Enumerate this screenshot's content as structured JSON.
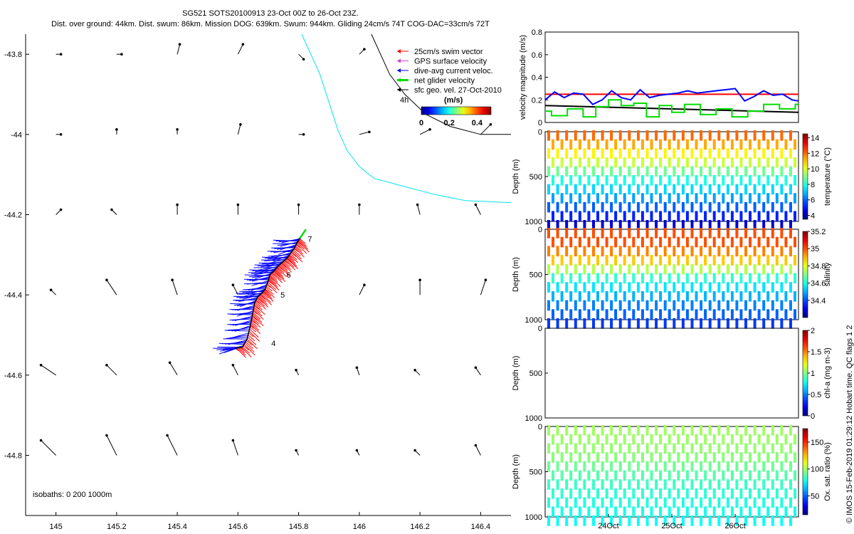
{
  "header": {
    "line1": "SG521 SOTS20100913 23-Oct 00Z to 26-Oct 23Z.",
    "line2": "Dist. over ground: 44km. Dist. swum: 86km. Mission DOG: 639km. Swum: 944km. Gliding 24cm/s 74T COG-DAC=33cm/s 72T"
  },
  "credit": "© IMOS 15-Feb-2019 01:29:12 Hobart time. QC flags 1  2",
  "colors": {
    "swim": "#ff0000",
    "gps": "#cc44cc",
    "dac": "#0000ff",
    "net": "#00dd00",
    "geo": "#000000",
    "isobath": "#00e5ee",
    "coast": "#000000",
    "redline": "#ff0000"
  },
  "chart_data": [
    {
      "id": "map",
      "type": "scatter",
      "title": "",
      "xlabel": "",
      "ylabel": "",
      "xlim": [
        144.9,
        146.5
      ],
      "ylim": [
        -44.95,
        -43.75
      ],
      "xticks": [
        145,
        145.2,
        145.4,
        145.6,
        145.8,
        146,
        146.2,
        146.4
      ],
      "xtick_labels": [
        "145",
        "145.2",
        "145.4",
        "145.6",
        "145.8",
        "146",
        "146.2",
        "146.4"
      ],
      "yticks": [
        -43.8,
        -44,
        -44.2,
        -44.4,
        -44.6,
        -44.8
      ],
      "ytick_labels": [
        "-43.8",
        "-44",
        "-44.2",
        "-44.4",
        "-44.6",
        "-44.8"
      ],
      "legend": {
        "position": "top-right",
        "items": [
          {
            "label": "25cm/s swim vector",
            "color": "#ff0000"
          },
          {
            "label": "GPS surface velocity",
            "color": "#cc44cc"
          },
          {
            "label": "dive-avg current veloc.",
            "color": "#0000ff"
          },
          {
            "label": "net glider velocity",
            "color": "#00dd00"
          },
          {
            "label": "sfc geo. vel. 27-Oct-2010",
            "color": "#000000"
          }
        ],
        "scale_label": "4h",
        "colorbar_title": "(m/s)",
        "colorbar_ticks": [
          "0",
          "0.2",
          "0.4"
        ],
        "colorbar_range": [
          0,
          0.5
        ]
      },
      "isobath_note": "isobaths: 0   200   1000m",
      "track_day_labels": [
        {
          "label": "7",
          "lon": 145.83,
          "lat": -44.26
        },
        {
          "label": "6",
          "lon": 145.76,
          "lat": -44.35
        },
        {
          "label": "5",
          "lon": 145.74,
          "lat": -44.4
        },
        {
          "label": "4",
          "lon": 145.71,
          "lat": -44.52
        }
      ],
      "track": [
        [
          145.59,
          -44.533
        ],
        [
          145.615,
          -44.53
        ],
        [
          145.63,
          -44.51
        ],
        [
          145.64,
          -44.48
        ],
        [
          145.645,
          -44.46
        ],
        [
          145.65,
          -44.44
        ],
        [
          145.655,
          -44.42
        ],
        [
          145.665,
          -44.405
        ],
        [
          145.68,
          -44.395
        ],
        [
          145.69,
          -44.385
        ],
        [
          145.7,
          -44.365
        ],
        [
          145.705,
          -44.35
        ],
        [
          145.72,
          -44.34
        ],
        [
          145.73,
          -44.33
        ],
        [
          145.745,
          -44.32
        ],
        [
          145.76,
          -44.31
        ],
        [
          145.77,
          -44.3
        ],
        [
          145.785,
          -44.285
        ],
        [
          145.795,
          -44.27
        ],
        [
          145.805,
          -44.258
        ]
      ],
      "isobath_0": [
        [
          145.81,
          -43.75
        ],
        [
          145.84,
          -43.8
        ],
        [
          145.87,
          -43.85
        ],
        [
          145.9,
          -43.92
        ],
        [
          145.93,
          -43.99
        ],
        [
          145.96,
          -44.04
        ],
        [
          146.0,
          -44.08
        ],
        [
          146.05,
          -44.11
        ],
        [
          146.1,
          -44.12
        ],
        [
          146.15,
          -44.13
        ],
        [
          146.25,
          -44.15
        ],
        [
          146.35,
          -44.165
        ],
        [
          146.5,
          -44.17
        ]
      ],
      "coast": [
        [
          146.04,
          -43.75
        ],
        [
          146.07,
          -43.8
        ],
        [
          146.1,
          -43.85
        ],
        [
          146.15,
          -43.9
        ],
        [
          146.22,
          -43.95
        ],
        [
          146.3,
          -43.98
        ],
        [
          146.4,
          -44.0
        ],
        [
          146.5,
          -44.0
        ]
      ],
      "geo_vectors": [
        {
          "lon": 145.0,
          "lat": -43.8,
          "u": 0.01,
          "v": 0.0
        },
        {
          "lon": 145.2,
          "lat": -43.8,
          "u": 0.01,
          "v": 0.0
        },
        {
          "lon": 145.4,
          "lat": -43.8,
          "u": 0.005,
          "v": 0.02
        },
        {
          "lon": 145.6,
          "lat": -43.8,
          "u": 0.01,
          "v": 0.02
        },
        {
          "lon": 145.8,
          "lat": -43.8,
          "u": 0.01,
          "v": -0.01
        },
        {
          "lon": 146.0,
          "lat": -43.8,
          "u": 0.01,
          "v": 0.01
        },
        {
          "lon": 145.0,
          "lat": -44.0,
          "u": 0.01,
          "v": 0.0
        },
        {
          "lon": 145.2,
          "lat": -44.0,
          "u": 0.0,
          "v": 0.01
        },
        {
          "lon": 145.4,
          "lat": -44.0,
          "u": 0.0,
          "v": 0.01
        },
        {
          "lon": 145.6,
          "lat": -44.0,
          "u": 0.005,
          "v": 0.02
        },
        {
          "lon": 145.8,
          "lat": -44.0,
          "u": 0.01,
          "v": 0.0
        },
        {
          "lon": 146.0,
          "lat": -44.0,
          "u": 0.02,
          "v": 0.005
        },
        {
          "lon": 146.2,
          "lat": -44.0,
          "u": 0.02,
          "v": 0.01
        },
        {
          "lon": 146.4,
          "lat": -44.0,
          "u": 0.02,
          "v": 0.02
        },
        {
          "lon": 145.0,
          "lat": -44.2,
          "u": 0.01,
          "v": 0.01
        },
        {
          "lon": 145.2,
          "lat": -44.2,
          "u": -0.01,
          "v": 0.01
        },
        {
          "lon": 145.4,
          "lat": -44.2,
          "u": 0.0,
          "v": 0.02
        },
        {
          "lon": 145.6,
          "lat": -44.2,
          "u": 0.0,
          "v": 0.02
        },
        {
          "lon": 145.8,
          "lat": -44.2,
          "u": 0.0,
          "v": 0.02
        },
        {
          "lon": 146.0,
          "lat": -44.2,
          "u": 0.0,
          "v": 0.02
        },
        {
          "lon": 146.2,
          "lat": -44.2,
          "u": -0.005,
          "v": 0.02
        },
        {
          "lon": 146.4,
          "lat": -44.2,
          "u": -0.01,
          "v": 0.02
        },
        {
          "lon": 145.0,
          "lat": -44.4,
          "u": -0.01,
          "v": 0.01
        },
        {
          "lon": 145.2,
          "lat": -44.4,
          "u": -0.02,
          "v": 0.03
        },
        {
          "lon": 145.4,
          "lat": -44.4,
          "u": -0.01,
          "v": 0.03
        },
        {
          "lon": 145.6,
          "lat": -44.4,
          "u": -0.01,
          "v": 0.02
        },
        {
          "lon": 146.0,
          "lat": -44.4,
          "u": 0.01,
          "v": 0.02
        },
        {
          "lon": 146.2,
          "lat": -44.4,
          "u": 0.0,
          "v": 0.03
        },
        {
          "lon": 146.4,
          "lat": -44.4,
          "u": 0.01,
          "v": 0.03
        },
        {
          "lon": 145.0,
          "lat": -44.6,
          "u": -0.03,
          "v": 0.02
        },
        {
          "lon": 145.2,
          "lat": -44.6,
          "u": -0.02,
          "v": 0.02
        },
        {
          "lon": 145.4,
          "lat": -44.6,
          "u": -0.015,
          "v": 0.025
        },
        {
          "lon": 145.6,
          "lat": -44.6,
          "u": -0.01,
          "v": 0.02
        },
        {
          "lon": 145.8,
          "lat": -44.6,
          "u": -0.005,
          "v": 0.01
        },
        {
          "lon": 146.0,
          "lat": -44.6,
          "u": -0.005,
          "v": 0.015
        },
        {
          "lon": 146.2,
          "lat": -44.6,
          "u": -0.01,
          "v": 0.01
        },
        {
          "lon": 146.4,
          "lat": -44.6,
          "u": -0.01,
          "v": 0.015
        },
        {
          "lon": 145.0,
          "lat": -44.8,
          "u": -0.03,
          "v": 0.03
        },
        {
          "lon": 145.2,
          "lat": -44.8,
          "u": -0.02,
          "v": 0.04
        },
        {
          "lon": 145.4,
          "lat": -44.8,
          "u": -0.02,
          "v": 0.04
        },
        {
          "lon": 145.6,
          "lat": -44.8,
          "u": -0.01,
          "v": 0.03
        },
        {
          "lon": 145.8,
          "lat": -44.8,
          "u": -0.005,
          "v": 0.01
        },
        {
          "lon": 146.0,
          "lat": -44.8,
          "u": -0.005,
          "v": 0.01
        },
        {
          "lon": 146.2,
          "lat": -44.8,
          "u": -0.01,
          "v": 0.01
        },
        {
          "lon": 146.4,
          "lat": -44.8,
          "u": -0.01,
          "v": 0.02
        }
      ]
    },
    {
      "id": "velocity",
      "type": "line",
      "ylabel": "velocity magnitude (m/s)",
      "ylim": [
        0,
        0.8
      ],
      "yticks": [
        0,
        0.2,
        0.4,
        0.6,
        0.8
      ],
      "ytick_labels": [
        "0",
        "0.2",
        "0.4",
        "0.6",
        "0.8"
      ],
      "xlim": [
        23.0,
        27.0
      ],
      "reference_line": 0.25,
      "series": [
        {
          "name": "dive-avg current veloc.",
          "color": "#0000ff",
          "x": [
            23.0,
            23.15,
            23.3,
            23.45,
            23.6,
            23.75,
            23.9,
            24.05,
            24.2,
            24.35,
            24.5,
            24.65,
            24.8,
            24.95,
            25.1,
            25.25,
            25.4,
            25.55,
            25.7,
            25.85,
            26.0,
            26.15,
            26.3,
            26.45,
            26.6,
            26.75,
            26.9,
            27.0
          ],
          "values": [
            0.2,
            0.27,
            0.22,
            0.26,
            0.25,
            0.16,
            0.2,
            0.28,
            0.22,
            0.2,
            0.29,
            0.22,
            0.24,
            0.25,
            0.26,
            0.28,
            0.26,
            0.27,
            0.28,
            0.29,
            0.3,
            0.19,
            0.23,
            0.28,
            0.24,
            0.25,
            0.2,
            0.19
          ]
        },
        {
          "name": "sfc geo. vel.",
          "color": "#000000",
          "x": [
            23.0,
            27.0
          ],
          "values": [
            0.15,
            0.09
          ]
        },
        {
          "name": "net glider velocity",
          "color": "#00dd00",
          "x": [
            23.0,
            23.1,
            23.1,
            23.35,
            23.35,
            23.6,
            23.6,
            23.8,
            23.8,
            24.0,
            24.0,
            24.2,
            24.2,
            24.4,
            24.4,
            24.6,
            24.6,
            24.8,
            24.8,
            25.0,
            25.0,
            25.2,
            25.2,
            25.45,
            25.45,
            25.7,
            25.7,
            25.95,
            25.95,
            26.2,
            26.2,
            26.45,
            26.45,
            26.7,
            26.7,
            26.95,
            26.95,
            27.0
          ],
          "values": [
            0.1,
            0.1,
            0.06,
            0.06,
            0.12,
            0.12,
            0.05,
            0.05,
            0.14,
            0.14,
            0.2,
            0.2,
            0.15,
            0.15,
            0.17,
            0.17,
            0.05,
            0.05,
            0.15,
            0.15,
            0.09,
            0.09,
            0.16,
            0.16,
            0.07,
            0.07,
            0.12,
            0.12,
            0.05,
            0.05,
            0.1,
            0.1,
            0.16,
            0.16,
            0.12,
            0.12,
            0.16,
            0.16
          ]
        }
      ]
    },
    {
      "id": "temperature",
      "type": "scatter",
      "ylabel": "Depth (m)",
      "yticks": [
        0,
        500,
        1000
      ],
      "ytick_labels": [
        "0",
        "500",
        "1000"
      ],
      "ylim": [
        1000,
        0
      ],
      "n_profiles": 28,
      "colorbar": {
        "label": "temperature (°C)",
        "range": [
          3.5,
          14.5
        ],
        "ticks": [
          4,
          6,
          8,
          10,
          12,
          14
        ],
        "tick_labels": [
          "4",
          "6",
          "8",
          "10",
          "12",
          "14"
        ]
      },
      "profile_depth": [
        0,
        100,
        200,
        300,
        400,
        500,
        600,
        700,
        800,
        900,
        1000
      ],
      "profile_values": [
        12.0,
        11.3,
        10.5,
        9.8,
        8.8,
        7.9,
        7.2,
        6.6,
        5.9,
        5.2,
        4.5
      ]
    },
    {
      "id": "salinity",
      "type": "scatter",
      "ylabel": "Depth (m)",
      "yticks": [
        0,
        500,
        1000
      ],
      "ytick_labels": [
        "0",
        "500",
        "1000"
      ],
      "ylim": [
        1000,
        0
      ],
      "n_profiles": 28,
      "colorbar": {
        "label": "salinity",
        "range": [
          34.2,
          35.2
        ],
        "ticks": [
          34.4,
          34.6,
          34.8,
          35.0,
          35.2
        ],
        "tick_labels": [
          "34.4",
          "34.6",
          "34.8",
          "35",
          "35.2"
        ]
      },
      "profile_depth": [
        0,
        100,
        200,
        300,
        400,
        500,
        600,
        700,
        800,
        900,
        1000
      ],
      "profile_values": [
        35.0,
        35.0,
        34.95,
        34.88,
        34.75,
        34.62,
        34.55,
        34.5,
        34.45,
        34.42,
        34.38
      ]
    },
    {
      "id": "chla",
      "type": "scatter",
      "ylabel": "Depth (m)",
      "yticks": [
        0,
        500,
        1000
      ],
      "ytick_labels": [
        "0",
        "500",
        "1000"
      ],
      "ylim": [
        1000,
        0
      ],
      "n_profiles": 0,
      "colorbar": {
        "label": "chl-a (mg m-3)",
        "range": [
          0,
          2
        ],
        "ticks": [
          0,
          0.5,
          1,
          1.5,
          2
        ],
        "tick_labels": [
          "0",
          "0.5",
          "1",
          "1.5",
          "2"
        ]
      },
      "profile_depth": [],
      "profile_values": []
    },
    {
      "id": "oxygen",
      "type": "scatter",
      "ylabel": "Depth (m)",
      "yticks": [
        0,
        500,
        1000
      ],
      "ytick_labels": [
        "0",
        "500",
        "1000"
      ],
      "ylim": [
        1000,
        0
      ],
      "n_profiles": 28,
      "colorbar": {
        "label": "Ox. sat. ratio (%)",
        "range": [
          15,
          175
        ],
        "ticks": [
          50,
          100,
          150
        ],
        "tick_labels": [
          "50",
          "100",
          "150"
        ]
      },
      "profile_depth": [
        0,
        100,
        200,
        300,
        400,
        500,
        600,
        700,
        800,
        900,
        1000
      ],
      "profile_values": [
        100,
        99,
        98,
        96,
        92,
        88,
        84,
        82,
        80,
        78,
        76
      ],
      "xticks": [
        24.0,
        25.0,
        26.0
      ],
      "xtick_labels": [
        "24Oct",
        "25Oct",
        "26Oct"
      ]
    }
  ]
}
